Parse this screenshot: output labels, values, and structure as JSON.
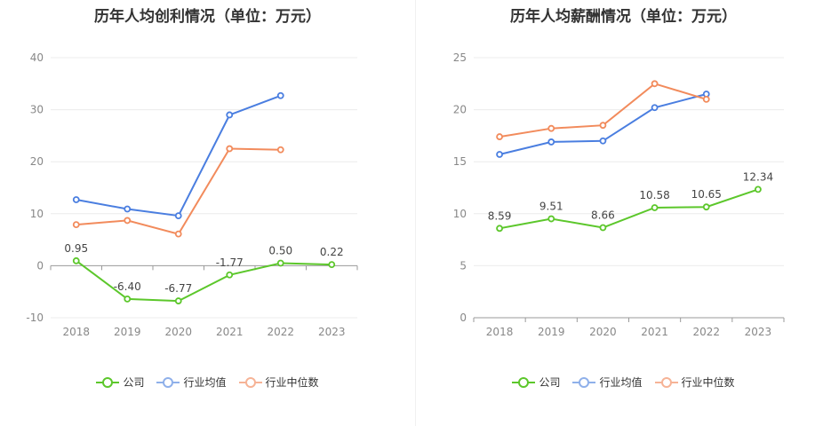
{
  "chart_data": [
    {
      "type": "line",
      "title": "历年人均创利情况（单位：万元）",
      "categories": [
        "2018",
        "2019",
        "2020",
        "2021",
        "2022",
        "2023"
      ],
      "ylim": [
        -10,
        40
      ],
      "yticks": [
        "40",
        "30",
        "20",
        "10",
        "0",
        "-10"
      ],
      "grid": true,
      "legend": "bottom",
      "series": [
        {
          "name": "公司",
          "color": "#5cc72b",
          "values": [
            0.95,
            -6.4,
            -6.77,
            -1.77,
            0.5,
            0.22
          ],
          "labels": [
            "0.95",
            "-6.40",
            "-6.77",
            "-1.77",
            "0.50",
            "0.22"
          ]
        },
        {
          "name": "行业均值",
          "color": "#4a7ee0",
          "values": [
            12.7,
            10.9,
            9.6,
            29.0,
            32.7,
            null
          ]
        },
        {
          "name": "行业中位数",
          "color": "#f28b5c",
          "values": [
            7.9,
            8.7,
            6.1,
            22.5,
            22.3,
            null
          ]
        }
      ]
    },
    {
      "type": "line",
      "title": "历年人均薪酬情况（单位：万元）",
      "categories": [
        "2018",
        "2019",
        "2020",
        "2021",
        "2022",
        "2023"
      ],
      "ylim": [
        0,
        25
      ],
      "yticks": [
        "25",
        "20",
        "15",
        "10",
        "5",
        "0"
      ],
      "grid": true,
      "legend": "bottom",
      "series": [
        {
          "name": "公司",
          "color": "#5cc72b",
          "values": [
            8.59,
            9.51,
            8.66,
            10.58,
            10.65,
            12.34
          ],
          "labels": [
            "8.59",
            "9.51",
            "8.66",
            "10.58",
            "10.65",
            "12.34"
          ]
        },
        {
          "name": "行业均值",
          "color": "#4a7ee0",
          "values": [
            15.7,
            16.9,
            17.0,
            20.2,
            21.5,
            null
          ]
        },
        {
          "name": "行业中位数",
          "color": "#f28b5c",
          "values": [
            17.4,
            18.2,
            18.5,
            22.5,
            21.0,
            null
          ]
        }
      ]
    }
  ],
  "legend_labels": [
    "公司",
    "行业均值",
    "行业中位数"
  ]
}
